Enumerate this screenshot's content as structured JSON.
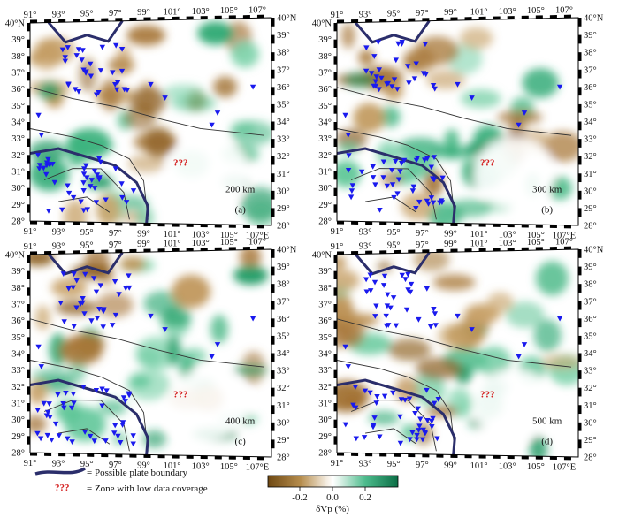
{
  "lon_labels": [
    "91°",
    "93°",
    "95°",
    "97°",
    "99°",
    "101°",
    "103°",
    "105°",
    "107°"
  ],
  "lon_east_suffix": "E",
  "lat_labels": [
    "28°",
    "29°",
    "30°",
    "31°",
    "32°",
    "33°",
    "34°",
    "35°",
    "36°",
    "37°",
    "38°",
    "39°",
    "40°"
  ],
  "lat_north_suffix": "N",
  "panels": [
    {
      "id": "(a)",
      "depth": "200 km",
      "qmark": "???"
    },
    {
      "id": "(b)",
      "depth": "300 km",
      "qmark": "???"
    },
    {
      "id": "(c)",
      "depth": "400 km",
      "qmark": "???"
    },
    {
      "id": "(d)",
      "depth": "500 km",
      "qmark": "???"
    }
  ],
  "legend": {
    "boundary_label": "= Possible plate boundary",
    "qmark": "???",
    "zone_label": "= Zone with low data coverage"
  },
  "colorbar": {
    "ticks": [
      "-0.2",
      "0.0",
      "0.2"
    ],
    "title": "δVp (%)",
    "color_neg": "#8a5a16",
    "color_zero": "#ffffff",
    "color_pos": "#118a5a"
  },
  "colors": {
    "station": "#1a1aee",
    "boundary": "#2b2e6b",
    "fault": "#333333",
    "qmark": "#d42020"
  }
}
